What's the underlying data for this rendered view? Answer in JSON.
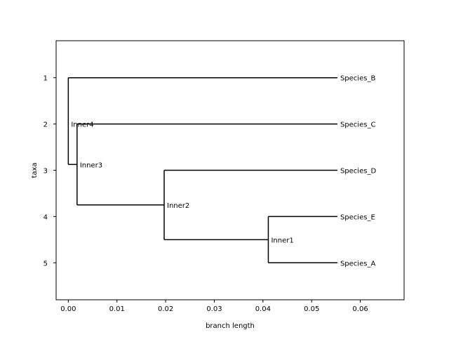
{
  "chart_data": {
    "type": "tree",
    "xlabel": "branch length",
    "ylabel": "taxa",
    "xlim": [
      -0.0025,
      0.069
    ],
    "ylim": [
      5.8,
      0.2
    ],
    "xticks": [
      0.0,
      0.01,
      0.02,
      0.03,
      0.04,
      0.05,
      0.06
    ],
    "xtick_labels": [
      "0.00",
      "0.01",
      "0.02",
      "0.03",
      "0.04",
      "0.05",
      "0.06"
    ],
    "yticks": [
      1,
      2,
      3,
      4,
      5
    ],
    "ytick_labels": [
      "1",
      "2",
      "3",
      "4",
      "5"
    ],
    "leaves": [
      {
        "name": "Species_B",
        "x": 0.0553,
        "y": 1
      },
      {
        "name": "Species_C",
        "x": 0.0553,
        "y": 2
      },
      {
        "name": "Species_D",
        "x": 0.0553,
        "y": 3
      },
      {
        "name": "Species_E",
        "x": 0.0553,
        "y": 4
      },
      {
        "name": "Species_A",
        "x": 0.0553,
        "y": 5
      }
    ],
    "internal_nodes": [
      {
        "name": "Inner1",
        "x": 0.0411,
        "y_top": 4,
        "y_bottom": 5,
        "y": 4.5
      },
      {
        "name": "Inner2",
        "x": 0.0197,
        "y_top": 3,
        "y_bottom": 4.5,
        "y": 3.75
      },
      {
        "name": "Inner3",
        "x": 0.0018,
        "y_top": 2,
        "y_bottom": 3.75,
        "y": 2.875
      },
      {
        "name": "Inner4",
        "x": 0.0,
        "y_top": 1,
        "y_bottom": 2.875,
        "y": 2.0
      }
    ],
    "edges": [
      {
        "from": "Inner4",
        "to": "Species_B"
      },
      {
        "from": "Inner4",
        "to": "Inner3"
      },
      {
        "from": "Inner3",
        "to": "Species_C"
      },
      {
        "from": "Inner3",
        "to": "Inner2"
      },
      {
        "from": "Inner2",
        "to": "Species_D"
      },
      {
        "from": "Inner2",
        "to": "Inner1"
      },
      {
        "from": "Inner1",
        "to": "Species_E"
      },
      {
        "from": "Inner1",
        "to": "Species_A"
      }
    ]
  }
}
